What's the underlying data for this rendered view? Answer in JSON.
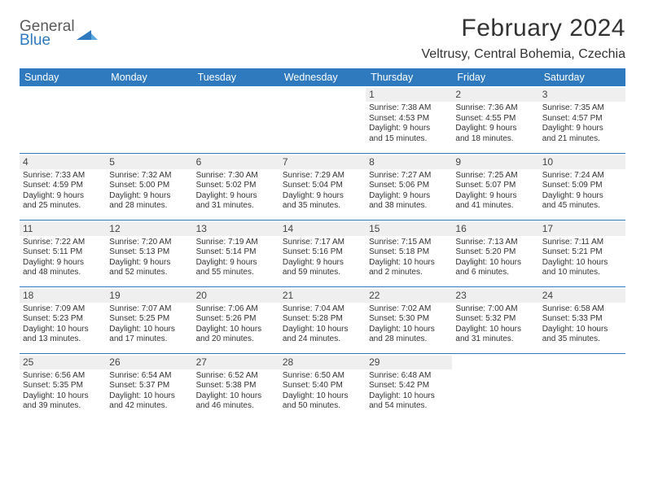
{
  "brand": {
    "line1": "General",
    "line2": "Blue"
  },
  "title": "February 2024",
  "location": "Veltrusy, Central Bohemia, Czechia",
  "calendar": {
    "header_bg": "#2f7abf",
    "header_color": "#ffffff",
    "divider_color": "#2f7abf",
    "daynum_bg": "#efefef",
    "day_headers": [
      "Sunday",
      "Monday",
      "Tuesday",
      "Wednesday",
      "Thursday",
      "Friday",
      "Saturday"
    ],
    "weeks": [
      [
        null,
        null,
        null,
        null,
        {
          "n": "1",
          "sr": "Sunrise: 7:38 AM",
          "ss": "Sunset: 4:53 PM",
          "d1": "Daylight: 9 hours",
          "d2": "and 15 minutes."
        },
        {
          "n": "2",
          "sr": "Sunrise: 7:36 AM",
          "ss": "Sunset: 4:55 PM",
          "d1": "Daylight: 9 hours",
          "d2": "and 18 minutes."
        },
        {
          "n": "3",
          "sr": "Sunrise: 7:35 AM",
          "ss": "Sunset: 4:57 PM",
          "d1": "Daylight: 9 hours",
          "d2": "and 21 minutes."
        }
      ],
      [
        {
          "n": "4",
          "sr": "Sunrise: 7:33 AM",
          "ss": "Sunset: 4:59 PM",
          "d1": "Daylight: 9 hours",
          "d2": "and 25 minutes."
        },
        {
          "n": "5",
          "sr": "Sunrise: 7:32 AM",
          "ss": "Sunset: 5:00 PM",
          "d1": "Daylight: 9 hours",
          "d2": "and 28 minutes."
        },
        {
          "n": "6",
          "sr": "Sunrise: 7:30 AM",
          "ss": "Sunset: 5:02 PM",
          "d1": "Daylight: 9 hours",
          "d2": "and 31 minutes."
        },
        {
          "n": "7",
          "sr": "Sunrise: 7:29 AM",
          "ss": "Sunset: 5:04 PM",
          "d1": "Daylight: 9 hours",
          "d2": "and 35 minutes."
        },
        {
          "n": "8",
          "sr": "Sunrise: 7:27 AM",
          "ss": "Sunset: 5:06 PM",
          "d1": "Daylight: 9 hours",
          "d2": "and 38 minutes."
        },
        {
          "n": "9",
          "sr": "Sunrise: 7:25 AM",
          "ss": "Sunset: 5:07 PM",
          "d1": "Daylight: 9 hours",
          "d2": "and 41 minutes."
        },
        {
          "n": "10",
          "sr": "Sunrise: 7:24 AM",
          "ss": "Sunset: 5:09 PM",
          "d1": "Daylight: 9 hours",
          "d2": "and 45 minutes."
        }
      ],
      [
        {
          "n": "11",
          "sr": "Sunrise: 7:22 AM",
          "ss": "Sunset: 5:11 PM",
          "d1": "Daylight: 9 hours",
          "d2": "and 48 minutes."
        },
        {
          "n": "12",
          "sr": "Sunrise: 7:20 AM",
          "ss": "Sunset: 5:13 PM",
          "d1": "Daylight: 9 hours",
          "d2": "and 52 minutes."
        },
        {
          "n": "13",
          "sr": "Sunrise: 7:19 AM",
          "ss": "Sunset: 5:14 PM",
          "d1": "Daylight: 9 hours",
          "d2": "and 55 minutes."
        },
        {
          "n": "14",
          "sr": "Sunrise: 7:17 AM",
          "ss": "Sunset: 5:16 PM",
          "d1": "Daylight: 9 hours",
          "d2": "and 59 minutes."
        },
        {
          "n": "15",
          "sr": "Sunrise: 7:15 AM",
          "ss": "Sunset: 5:18 PM",
          "d1": "Daylight: 10 hours",
          "d2": "and 2 minutes."
        },
        {
          "n": "16",
          "sr": "Sunrise: 7:13 AM",
          "ss": "Sunset: 5:20 PM",
          "d1": "Daylight: 10 hours",
          "d2": "and 6 minutes."
        },
        {
          "n": "17",
          "sr": "Sunrise: 7:11 AM",
          "ss": "Sunset: 5:21 PM",
          "d1": "Daylight: 10 hours",
          "d2": "and 10 minutes."
        }
      ],
      [
        {
          "n": "18",
          "sr": "Sunrise: 7:09 AM",
          "ss": "Sunset: 5:23 PM",
          "d1": "Daylight: 10 hours",
          "d2": "and 13 minutes."
        },
        {
          "n": "19",
          "sr": "Sunrise: 7:07 AM",
          "ss": "Sunset: 5:25 PM",
          "d1": "Daylight: 10 hours",
          "d2": "and 17 minutes."
        },
        {
          "n": "20",
          "sr": "Sunrise: 7:06 AM",
          "ss": "Sunset: 5:26 PM",
          "d1": "Daylight: 10 hours",
          "d2": "and 20 minutes."
        },
        {
          "n": "21",
          "sr": "Sunrise: 7:04 AM",
          "ss": "Sunset: 5:28 PM",
          "d1": "Daylight: 10 hours",
          "d2": "and 24 minutes."
        },
        {
          "n": "22",
          "sr": "Sunrise: 7:02 AM",
          "ss": "Sunset: 5:30 PM",
          "d1": "Daylight: 10 hours",
          "d2": "and 28 minutes."
        },
        {
          "n": "23",
          "sr": "Sunrise: 7:00 AM",
          "ss": "Sunset: 5:32 PM",
          "d1": "Daylight: 10 hours",
          "d2": "and 31 minutes."
        },
        {
          "n": "24",
          "sr": "Sunrise: 6:58 AM",
          "ss": "Sunset: 5:33 PM",
          "d1": "Daylight: 10 hours",
          "d2": "and 35 minutes."
        }
      ],
      [
        {
          "n": "25",
          "sr": "Sunrise: 6:56 AM",
          "ss": "Sunset: 5:35 PM",
          "d1": "Daylight: 10 hours",
          "d2": "and 39 minutes."
        },
        {
          "n": "26",
          "sr": "Sunrise: 6:54 AM",
          "ss": "Sunset: 5:37 PM",
          "d1": "Daylight: 10 hours",
          "d2": "and 42 minutes."
        },
        {
          "n": "27",
          "sr": "Sunrise: 6:52 AM",
          "ss": "Sunset: 5:38 PM",
          "d1": "Daylight: 10 hours",
          "d2": "and 46 minutes."
        },
        {
          "n": "28",
          "sr": "Sunrise: 6:50 AM",
          "ss": "Sunset: 5:40 PM",
          "d1": "Daylight: 10 hours",
          "d2": "and 50 minutes."
        },
        {
          "n": "29",
          "sr": "Sunrise: 6:48 AM",
          "ss": "Sunset: 5:42 PM",
          "d1": "Daylight: 10 hours",
          "d2": "and 54 minutes."
        },
        null,
        null
      ]
    ]
  }
}
